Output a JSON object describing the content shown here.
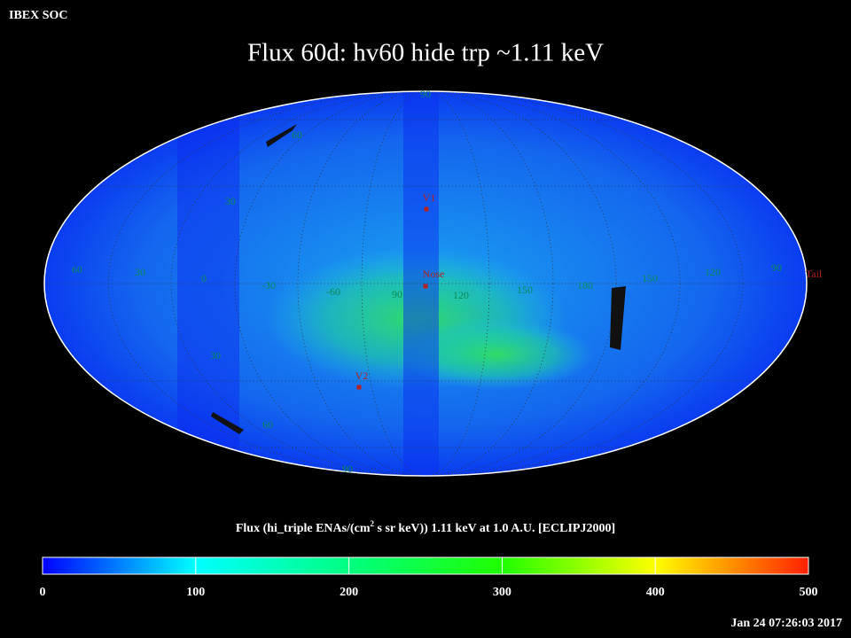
{
  "header": {
    "source": "IBEX SOC",
    "timestamp": "Jan 24 07:26:03 2017"
  },
  "title": "Flux   60d: hv60 hide trp ~1.11 keV",
  "colorbar": {
    "label_parts": [
      "Flux (hi_triple ENAs/(cm",
      "2",
      " s sr keV))  1.11 keV at 1.0 A.U. [ECLIPJ2000]"
    ],
    "lim": [
      0,
      500
    ],
    "ticks": [
      0,
      100,
      200,
      300,
      400,
      500
    ]
  },
  "longitude_labels": [
    "60",
    "30",
    "0",
    "-30",
    "-60",
    "90",
    "120",
    "150",
    "180",
    "150",
    "120",
    "90"
  ],
  "latitude_labels": [
    "90",
    "60",
    "30",
    "30",
    "60",
    "90"
  ],
  "markers": [
    "V1",
    "Nose",
    "V2",
    "Tail"
  ]
}
